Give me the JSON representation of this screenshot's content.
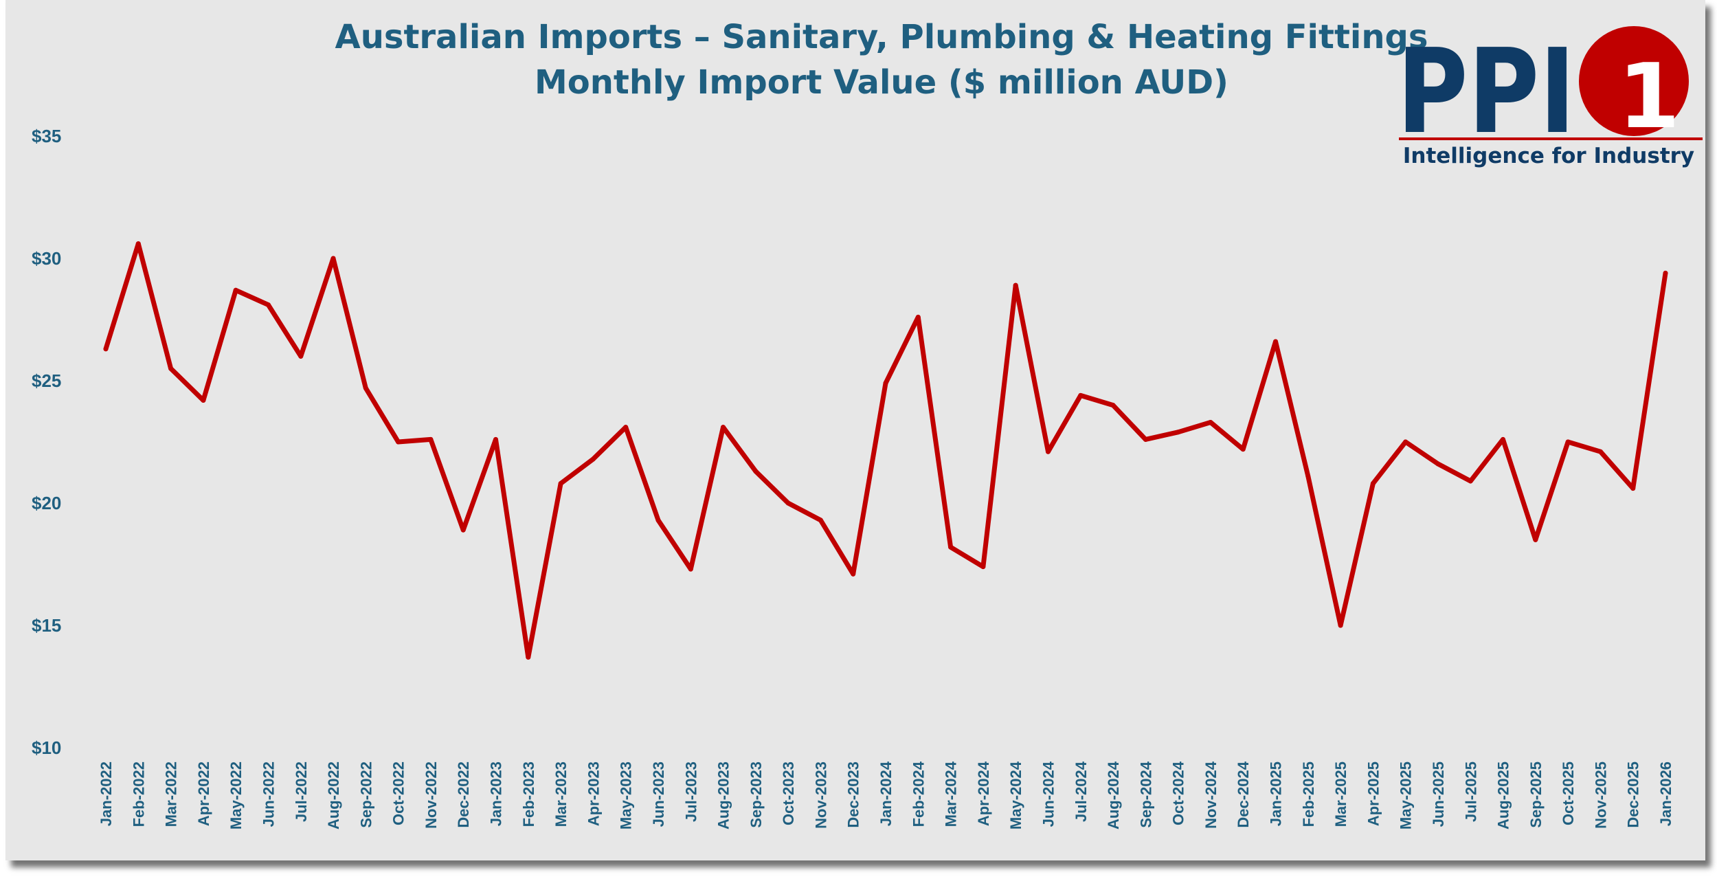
{
  "colors": {
    "background": "#e7e7e7",
    "line": "#c00000",
    "text": "#1f5f80",
    "logo_navy": "#0f3b66",
    "logo_red": "#c00000"
  },
  "logo": {
    "letters": "PPI",
    "digit": "1",
    "tagline": "Intelligence for Industry"
  },
  "chart_data": {
    "type": "line",
    "title": "Australian Imports – Sanitary, Plumbing & Heating Fittings",
    "subtitle": "Monthly Import Value ($ million AUD)",
    "xlabel": "",
    "ylabel": "",
    "ylim": [
      10,
      35
    ],
    "yticks": [
      10,
      15,
      20,
      25,
      30,
      35
    ],
    "ytick_labels": [
      "$10",
      "$15",
      "$20",
      "$25",
      "$30",
      "$35"
    ],
    "grid": false,
    "legend": "none",
    "categories": [
      "Jan-2022",
      "Feb-2022",
      "Mar-2022",
      "Apr-2022",
      "May-2022",
      "Jun-2022",
      "Jul-2022",
      "Aug-2022",
      "Sep-2022",
      "Oct-2022",
      "Nov-2022",
      "Dec-2022",
      "Jan-2023",
      "Feb-2023",
      "Mar-2023",
      "Apr-2023",
      "May-2023",
      "Jun-2023",
      "Jul-2023",
      "Aug-2023",
      "Sep-2023",
      "Oct-2023",
      "Nov-2023",
      "Dec-2023",
      "Jan-2024",
      "Feb-2024",
      "Mar-2024",
      "Apr-2024",
      "May-2024",
      "Jun-2024",
      "Jul-2024",
      "Aug-2024",
      "Sep-2024",
      "Oct-2024",
      "Nov-2024",
      "Dec-2024",
      "Jan-2025",
      "Feb-2025",
      "Mar-2025",
      "Apr-2025",
      "May-2025",
      "Jun-2025",
      "Jul-2025",
      "Aug-2025",
      "Sep-2025",
      "Oct-2025",
      "Nov-2025",
      "Dec-2025",
      "Jan-2026"
    ],
    "series": [
      {
        "name": "Monthly Import Value",
        "values": [
          26.3,
          30.6,
          25.5,
          24.2,
          28.7,
          28.1,
          26.0,
          30.0,
          24.7,
          22.5,
          22.6,
          18.9,
          22.6,
          13.7,
          20.8,
          21.8,
          23.1,
          19.3,
          17.3,
          23.1,
          21.3,
          20.0,
          19.3,
          17.1,
          24.9,
          27.6,
          18.2,
          17.4,
          28.9,
          22.1,
          24.4,
          24.0,
          22.6,
          22.9,
          23.3,
          22.2,
          26.6,
          21.1,
          15.0,
          20.8,
          22.5,
          21.6,
          20.9,
          22.6,
          18.5,
          22.5,
          22.1,
          20.6,
          29.4
        ]
      }
    ]
  }
}
